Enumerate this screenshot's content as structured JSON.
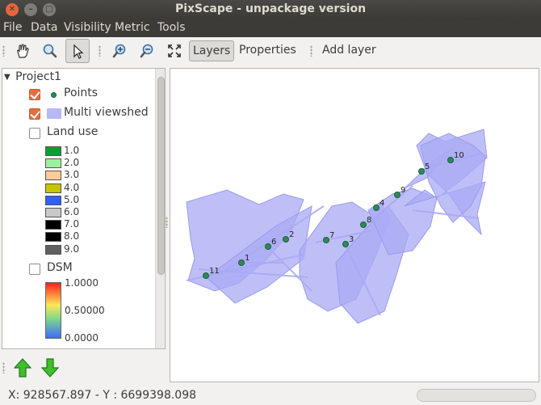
{
  "window": {
    "title": "PixScape - unpackage version"
  },
  "menu": [
    "File",
    "Data",
    "Visibility",
    "Metric",
    "Tools"
  ],
  "toolbar": {
    "layers_label": "Layers",
    "properties_label": "Properties",
    "add_layer_label": "Add layer"
  },
  "tree": {
    "project": "Project1",
    "layers": [
      {
        "name": "Points",
        "checked": true
      },
      {
        "name": "Multi viewshed",
        "checked": true
      },
      {
        "name": "Land use",
        "checked": false
      },
      {
        "name": "DSM",
        "checked": false
      }
    ],
    "landuse_legend": [
      {
        "label": "1.0",
        "color": "#0b9e32"
      },
      {
        "label": "2.0",
        "color": "#9cf29c"
      },
      {
        "label": "3.0",
        "color": "#ffcc99"
      },
      {
        "label": "4.0",
        "color": "#c6c600"
      },
      {
        "label": "5.0",
        "color": "#2f5fff"
      },
      {
        "label": "6.0",
        "color": "#c9c9c9"
      },
      {
        "label": "7.0",
        "color": "#000000"
      },
      {
        "label": "8.0",
        "color": "#000000"
      },
      {
        "label": "9.0",
        "color": "#606060"
      }
    ],
    "dsm_legend": {
      "max": "1.0000",
      "mid": "0.50000",
      "min": "0.0000"
    }
  },
  "map": {
    "points": [
      {
        "id": "1"
      },
      {
        "id": "2"
      },
      {
        "id": "3"
      },
      {
        "id": "4"
      },
      {
        "id": "5"
      },
      {
        "id": "6"
      },
      {
        "id": "7"
      },
      {
        "id": "8"
      },
      {
        "id": "9"
      },
      {
        "id": "10"
      },
      {
        "id": "11"
      }
    ],
    "viewshed_color": "#a9a9f5",
    "point_color": "#2e8b57"
  },
  "status": {
    "coords": "X: 928567.897 - Y : 6699398.098"
  }
}
